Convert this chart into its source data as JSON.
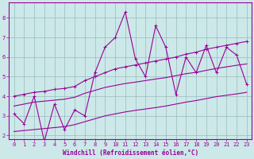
{
  "x": [
    0,
    1,
    2,
    3,
    4,
    5,
    6,
    7,
    8,
    9,
    10,
    11,
    12,
    13,
    14,
    15,
    16,
    17,
    18,
    19,
    20,
    21,
    22,
    23
  ],
  "y_main": [
    3.1,
    2.6,
    4.0,
    1.7,
    3.6,
    2.3,
    3.3,
    3.0,
    5.2,
    6.5,
    7.0,
    8.3,
    5.9,
    5.0,
    7.6,
    6.5,
    4.1,
    6.0,
    5.2,
    6.6,
    5.2,
    6.5,
    6.1,
    4.6
  ],
  "y_upper": [
    4.0,
    4.1,
    4.2,
    4.25,
    4.35,
    4.4,
    4.5,
    4.8,
    5.0,
    5.2,
    5.4,
    5.5,
    5.6,
    5.7,
    5.8,
    5.9,
    6.0,
    6.15,
    6.25,
    6.4,
    6.5,
    6.6,
    6.7,
    6.8
  ],
  "y_mid": [
    3.5,
    3.6,
    3.7,
    3.75,
    3.8,
    3.85,
    3.95,
    4.15,
    4.3,
    4.45,
    4.55,
    4.65,
    4.72,
    4.8,
    4.88,
    4.95,
    5.05,
    5.15,
    5.22,
    5.32,
    5.42,
    5.5,
    5.58,
    5.65
  ],
  "y_lower": [
    2.2,
    2.25,
    2.3,
    2.35,
    2.4,
    2.45,
    2.55,
    2.7,
    2.85,
    3.0,
    3.1,
    3.2,
    3.28,
    3.35,
    3.42,
    3.5,
    3.6,
    3.7,
    3.78,
    3.88,
    3.98,
    4.05,
    4.12,
    4.2
  ],
  "line_color": "#990099",
  "bg_color": "#cce8e8",
  "grid_color": "#99bbbb",
  "xlabel": "Windchill (Refroidissement éolien,°C)",
  "xlim": [
    -0.5,
    23.5
  ],
  "ylim": [
    1.8,
    8.8
  ],
  "yticks": [
    2,
    3,
    4,
    5,
    6,
    7,
    8
  ],
  "xticks": [
    0,
    1,
    2,
    3,
    4,
    5,
    6,
    7,
    8,
    9,
    10,
    11,
    12,
    13,
    14,
    15,
    16,
    17,
    18,
    19,
    20,
    21,
    22,
    23
  ]
}
